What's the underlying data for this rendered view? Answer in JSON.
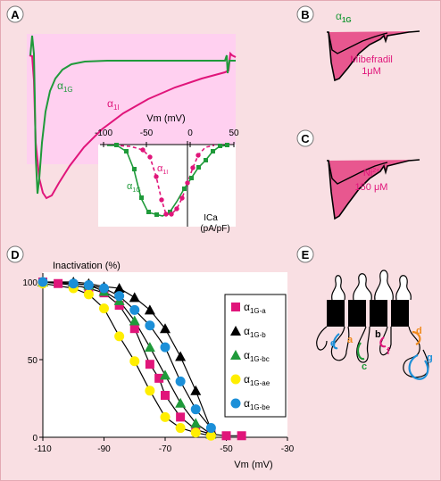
{
  "panels": {
    "A": {
      "label": "A",
      "trace_labels": {
        "a1g": "α",
        "a1g_sub": "1G",
        "a1i": "α",
        "a1i_sub": "1I"
      },
      "inset": {
        "xlabel": "Vm  (mV)",
        "xticks": [
          "-100",
          "-50",
          "0",
          "50"
        ],
        "ylabel_line1": "ICa",
        "ylabel_line2": "(pA/pF)",
        "series_labels": {
          "a1g": "α",
          "a1g_sub": "1G",
          "a1i": "α",
          "a1i_sub": "1I"
        }
      }
    },
    "B": {
      "label": "B",
      "trace_label": "α",
      "trace_label_sub": "1G",
      "drug_line1": "Mibefradil",
      "drug_line2": "1μM"
    },
    "C": {
      "label": "C",
      "drug_line1": "Ni",
      "drug_sup": "2+",
      "drug_line2": "150 μM"
    },
    "D": {
      "label": "D",
      "ylabel": "Inactivation (%)",
      "xlabel": "Vm (mV)"
    },
    "E": {
      "label": "E",
      "loop_labels": [
        "e",
        "a",
        "b",
        "f",
        "c",
        "d",
        "g"
      ]
    }
  },
  "colors": {
    "magenta": "#e0157a",
    "green": "#1f9a3a",
    "yellow": "#ffee00",
    "blue": "#1b8fd8",
    "black": "#000000",
    "orange": "#f08a1c",
    "pink_fill": "#e8578f",
    "panel_a_bg": "#ffd0f0"
  },
  "chart_data": {
    "type": "scatter",
    "title": "",
    "ylabel": "Inactivation (%)",
    "xlabel": "Vm (mV)",
    "xlim": [
      -110,
      -30
    ],
    "ylim": [
      0,
      100
    ],
    "xticks": [
      -110,
      -90,
      -70,
      -50,
      -30
    ],
    "yticks": [
      0,
      50,
      100
    ],
    "legend_position": "right",
    "series": [
      {
        "name": "α",
        "sub": "1G-a",
        "marker": "square",
        "color": "#e0157a",
        "x": [
          -110,
          -105,
          -100,
          -95,
          -90,
          -85,
          -80,
          -75,
          -72,
          -70,
          -65,
          -60,
          -55,
          -50,
          -45
        ],
        "y": [
          100,
          99,
          98,
          96,
          93,
          85,
          70,
          47,
          38,
          27,
          13,
          5,
          2,
          1,
          1
        ]
      },
      {
        "name": "α",
        "sub": "1G-b",
        "marker": "triangle",
        "color": "#000000",
        "x": [
          -110,
          -100,
          -95,
          -90,
          -85,
          -80,
          -75,
          -70,
          -65,
          -60,
          -55
        ],
        "y": [
          100,
          100,
          99,
          97,
          96,
          90,
          82,
          70,
          52,
          30,
          5
        ]
      },
      {
        "name": "α",
        "sub": "1G-bc",
        "marker": "triangle",
        "color": "#1f9a3a",
        "x": [
          -110,
          -100,
          -95,
          -90,
          -85,
          -80,
          -75,
          -70,
          -65,
          -60,
          -55
        ],
        "y": [
          100,
          99,
          98,
          94,
          88,
          75,
          58,
          40,
          22,
          9,
          2
        ]
      },
      {
        "name": "α",
        "sub": "1G-ae",
        "marker": "circle",
        "color": "#ffee00",
        "x": [
          -110,
          -100,
          -95,
          -90,
          -85,
          -80,
          -75,
          -70,
          -65,
          -60,
          -55
        ],
        "y": [
          99,
          96,
          92,
          83,
          65,
          49,
          30,
          13,
          6,
          3,
          1
        ]
      },
      {
        "name": "α",
        "sub": "1G-be",
        "marker": "circle",
        "color": "#1b8fd8",
        "x": [
          -110,
          -100,
          -95,
          -90,
          -85,
          -80,
          -75,
          -70,
          -65,
          -60,
          -55
        ],
        "y": [
          100,
          99,
          98,
          96,
          91,
          82,
          72,
          58,
          36,
          18,
          6
        ]
      }
    ]
  }
}
